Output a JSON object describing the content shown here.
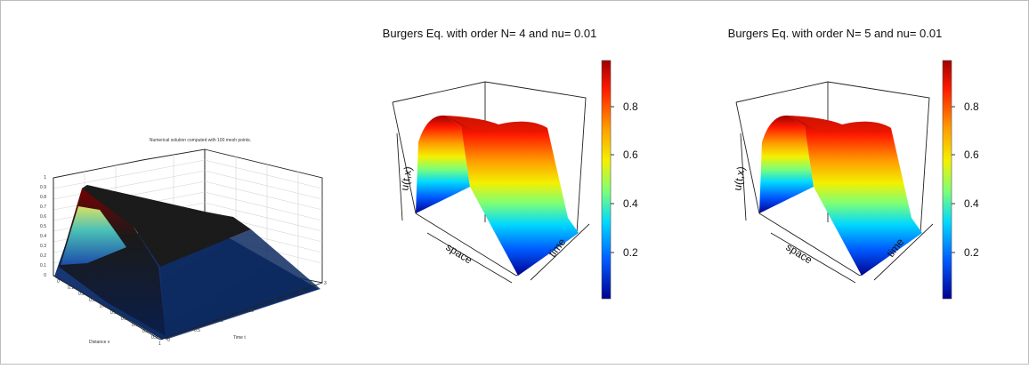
{
  "chart_data": [
    {
      "type": "surface",
      "title": "Numerical solution computed with 100 mesh points.",
      "xlabel": "Distance x",
      "ylabel": "Time t",
      "zlabel": "",
      "z_ticks": [
        "0",
        "0.1",
        "0.2",
        "0.3",
        "0.4",
        "0.5",
        "0.6",
        "0.7",
        "0.8",
        "0.9",
        "1"
      ],
      "x_ticks": [
        "0",
        "0.1",
        "0.2",
        "0.3",
        "0.4",
        "0.5",
        "0.6",
        "0.7",
        "0.8",
        "0.9",
        "1"
      ],
      "t_ticks": [
        "0",
        "0.5",
        "1",
        "1.5",
        "2",
        "2.5",
        "3"
      ],
      "zlim": [
        0,
        1
      ],
      "colormap": "jet",
      "grid": true,
      "peak_value": 1.0
    },
    {
      "type": "surface",
      "title": "Burgers Eq. with order N= 4  and nu= 0.01",
      "xlabel": "space",
      "ylabel": "time",
      "zlabel": "u(t,x)",
      "colorbar_ticks": [
        "0.2",
        "0.4",
        "0.6",
        "0.8"
      ],
      "colorbar_range": [
        0.0,
        0.98
      ],
      "colormap": "jet",
      "max_value": 0.98
    },
    {
      "type": "surface",
      "title": "Burgers Eq. with order N= 5  and nu= 0.01",
      "xlabel": "space",
      "ylabel": "time",
      "zlabel": "u(t,x)",
      "colorbar_ticks": [
        "0.2",
        "0.4",
        "0.6",
        "0.8"
      ],
      "colorbar_range": [
        0.0,
        0.98
      ],
      "colormap": "jet",
      "max_value": 0.98
    }
  ]
}
